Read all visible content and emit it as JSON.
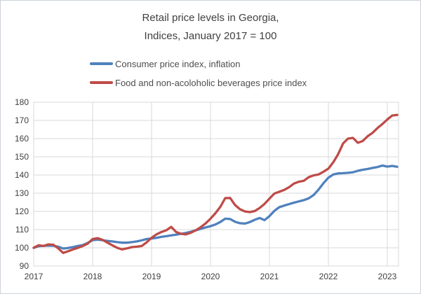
{
  "figure": {
    "title_line1": "Retail price levels in Georgia,",
    "title_line2": "Indices, January 2017 = 100"
  },
  "colors": {
    "cpi_line": "#4F81BD",
    "food_line": "#BE4B48",
    "gridline": "#D9D9D9",
    "axis_line": "#BFBFBF",
    "tick_text": "#404040",
    "title_text": "#404040",
    "legend_text": "#4d4d4d",
    "figure_border": "#ccd3d9"
  },
  "chart_data": {
    "type": "line",
    "title": "Retail price levels in Georgia, Indices, January 2017 = 100",
    "x_start_label": "January 2017",
    "x_months_per_tick": 12,
    "x_tick_labels": [
      "2017",
      "2018",
      "2019",
      "2020",
      "2021",
      "2022",
      "2023"
    ],
    "y_ticks": [
      90,
      100,
      110,
      120,
      130,
      140,
      150,
      160,
      170,
      180
    ],
    "ylim": [
      90,
      180
    ],
    "grid": true,
    "legend_position": "top-left",
    "series": [
      {
        "name": "Consumer price index, inflation",
        "color": "#4F81BD",
        "values": [
          100.0,
          100.9,
          101.1,
          101.2,
          101.1,
          100.6,
          99.6,
          99.9,
          100.4,
          101.0,
          101.5,
          102.7,
          104.2,
          104.5,
          104.2,
          103.8,
          103.5,
          103.1,
          102.8,
          102.8,
          103.1,
          103.5,
          104.1,
          104.8,
          105.1,
          105.5,
          106.0,
          106.4,
          106.8,
          107.2,
          107.7,
          108.2,
          108.8,
          109.6,
          110.4,
          111.2,
          111.9,
          112.8,
          114.2,
          116.0,
          115.8,
          114.3,
          113.5,
          113.3,
          114.1,
          115.4,
          116.4,
          115.2,
          117.4,
          120.3,
          122.3,
          123.2,
          124.0,
          124.8,
          125.5,
          126.2,
          127.2,
          129.0,
          132.0,
          135.5,
          138.5,
          140.3,
          140.9,
          141.0,
          141.2,
          141.5,
          142.3,
          142.9,
          143.3,
          143.9,
          144.4,
          145.2,
          144.6,
          145.0,
          144.5
        ]
      },
      {
        "name": "Food and non-acoloholic beverages price index",
        "color": "#BE4B48",
        "values": [
          100.0,
          101.4,
          101.0,
          101.9,
          101.7,
          99.7,
          97.2,
          98.1,
          99.1,
          100.0,
          101.0,
          102.3,
          104.8,
          105.3,
          104.4,
          102.9,
          101.4,
          100.0,
          99.1,
          99.7,
          100.4,
          100.6,
          101.0,
          103.0,
          105.5,
          107.4,
          108.7,
          109.6,
          111.5,
          108.7,
          107.7,
          107.4,
          108.3,
          109.6,
          111.3,
          113.4,
          116.0,
          119.0,
          122.5,
          127.3,
          127.4,
          123.5,
          121.2,
          120.0,
          119.6,
          120.2,
          121.9,
          124.1,
          127.0,
          129.8,
          130.8,
          131.8,
          133.3,
          135.3,
          136.3,
          136.8,
          138.8,
          139.8,
          140.3,
          141.8,
          143.5,
          147.0,
          151.5,
          157.4,
          160.0,
          160.4,
          157.7,
          158.7,
          161.3,
          163.2,
          165.8,
          168.0,
          170.5,
          172.7,
          173.0
        ]
      }
    ]
  }
}
